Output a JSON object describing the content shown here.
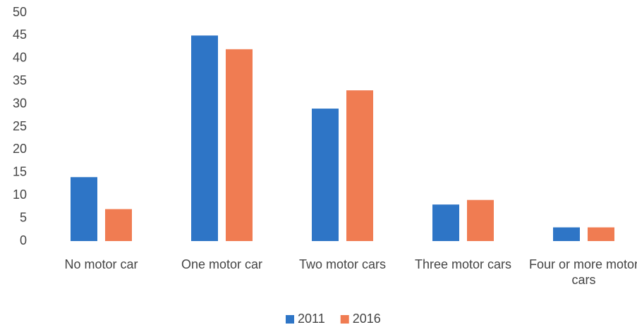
{
  "chart_data": {
    "type": "bar",
    "categories": [
      "No motor car",
      "One motor car",
      "Two motor cars",
      "Three motor cars",
      "Four or more motor cars"
    ],
    "series": [
      {
        "name": "2011",
        "color": "#2e75c6",
        "values": [
          14,
          45,
          29,
          8,
          3
        ]
      },
      {
        "name": "2016",
        "color": "#f07c52",
        "values": [
          7,
          42,
          33,
          9,
          3
        ]
      }
    ],
    "ylim": [
      0,
      50
    ],
    "yticks": [
      0,
      5,
      10,
      15,
      20,
      25,
      30,
      35,
      40,
      45,
      50
    ],
    "grid": false,
    "legend": "bottom"
  }
}
